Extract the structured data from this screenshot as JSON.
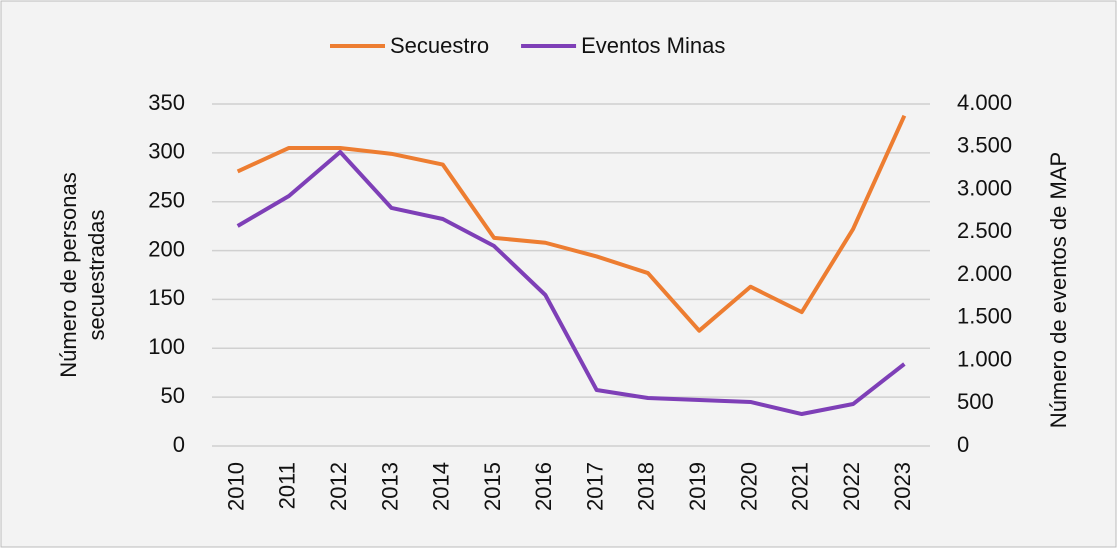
{
  "chart_data": {
    "type": "line",
    "categories": [
      "2010",
      "2011",
      "2012",
      "2013",
      "2014",
      "2015",
      "2016",
      "2017",
      "2018",
      "2019",
      "2020",
      "2021",
      "2022",
      "2023"
    ],
    "series": [
      {
        "name": "Secuestro",
        "color": "#ed7d31",
        "values": [
          281,
          305,
          305,
          299,
          288,
          213,
          208,
          194,
          177,
          118,
          163,
          137,
          222,
          338
        ]
      },
      {
        "name": "Eventos Minas",
        "color": "#7e3fb7",
        "axis": "y2",
        "values": [
          2573,
          2924,
          3439,
          2784,
          2655,
          2339,
          1766,
          655,
          561,
          538,
          515,
          374,
          491,
          959
        ]
      }
    ],
    "ylabel": [
      "Número de personas",
      "secuestradas"
    ],
    "y2label": "Número de eventos de MAP",
    "ylim": [
      0,
      350
    ],
    "yticks": [
      0,
      50,
      100,
      150,
      200,
      250,
      300,
      350
    ],
    "y2lim": [
      0,
      4000
    ],
    "y2ticks": [
      0,
      500,
      {
        "value": 1000,
        "label": "1.000"
      },
      {
        "value": 1500,
        "label": "1.500"
      },
      {
        "value": 2000,
        "label": "2.000"
      },
      {
        "value": 2500,
        "label": "2.500"
      },
      {
        "value": 3000,
        "label": "3.000"
      },
      {
        "value": 3500,
        "label": "3.500"
      },
      {
        "value": 4000,
        "label": "4.000"
      }
    ],
    "grid": true,
    "legend": "top"
  }
}
